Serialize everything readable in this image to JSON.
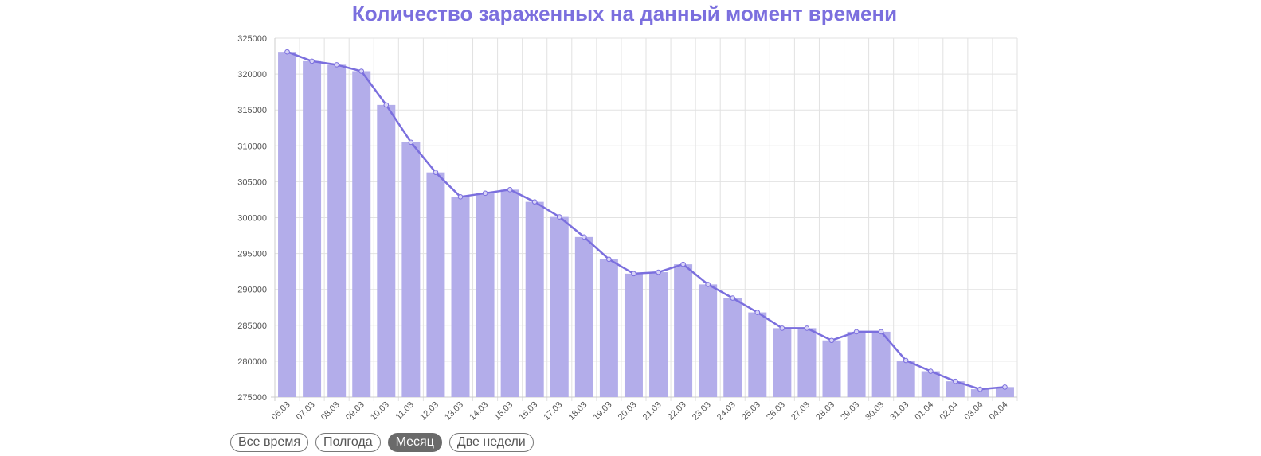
{
  "colors": {
    "accent": "#7b6fde",
    "bar": "#b3adea",
    "line": "#7b6fde",
    "grid": "#e2e2e2"
  },
  "chart_data": {
    "type": "bar",
    "title": "Количество зараженных на данный момент времени",
    "categories": [
      "06.03",
      "07.03",
      "08.03",
      "09.03",
      "10.03",
      "11.03",
      "12.03",
      "13.03",
      "14.03",
      "15.03",
      "16.03",
      "17.03",
      "18.03",
      "19.03",
      "20.03",
      "21.03",
      "22.03",
      "23.03",
      "24.03",
      "25.03",
      "26.03",
      "27.03",
      "28.03",
      "29.03",
      "30.03",
      "31.03",
      "01.04",
      "02.04",
      "03.04",
      "04.04"
    ],
    "values": [
      323100,
      321800,
      321300,
      320400,
      315700,
      310500,
      306300,
      302900,
      303400,
      303900,
      302200,
      300100,
      297300,
      294200,
      292200,
      292400,
      293500,
      290700,
      288800,
      286800,
      284600,
      284600,
      282900,
      284100,
      284100,
      280100,
      278600,
      277200,
      276100,
      276400
    ],
    "overlay": "line",
    "ylim": [
      275000,
      325000
    ],
    "yticks": [
      275000,
      280000,
      285000,
      290000,
      295000,
      300000,
      305000,
      310000,
      315000,
      320000,
      325000
    ],
    "grid": true,
    "legend": "none"
  },
  "range_buttons": [
    {
      "label": "Все время",
      "active": false
    },
    {
      "label": "Полгода",
      "active": false
    },
    {
      "label": "Месяц",
      "active": true
    },
    {
      "label": "Две недели",
      "active": false
    }
  ]
}
